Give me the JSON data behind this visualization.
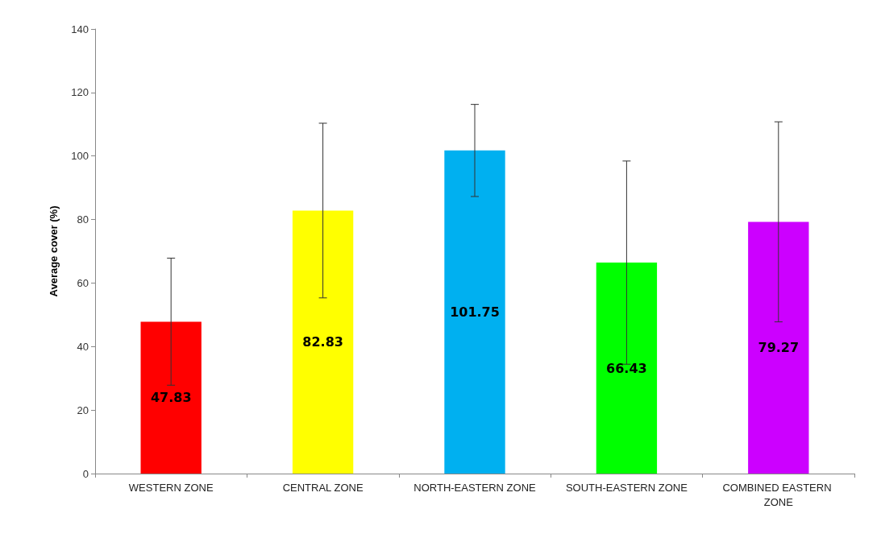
{
  "chart_data": {
    "type": "bar",
    "ylabel": "Average cover (%)",
    "categories": [
      "WESTERN ZONE",
      "CENTRAL ZONE",
      "NORTH-EASTERN ZONE",
      "SOUTH-EASTERN ZONE",
      "COMBINED EASTERN ZONE"
    ],
    "values": [
      47.83,
      82.83,
      101.75,
      66.43,
      79.27
    ],
    "colors": [
      "#ff0000",
      "#ffff00",
      "#00b0f0",
      "#00ff00",
      "#cc00ff"
    ],
    "errors": [
      20,
      27.5,
      14.5,
      32,
      31.5
    ],
    "ylim": [
      0,
      140
    ],
    "yticks": [
      0,
      20,
      40,
      60,
      80,
      100,
      120,
      140
    ],
    "data_labels": true,
    "grid": false
  }
}
